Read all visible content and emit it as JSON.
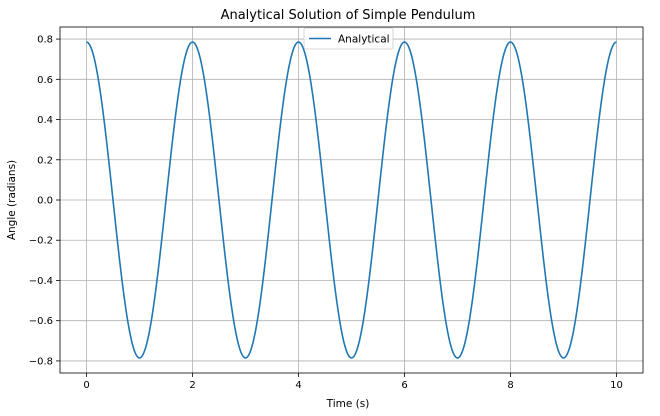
{
  "chart_data": {
    "type": "line",
    "title": "Analytical Solution of Simple Pendulum",
    "xlabel": "Time (s)",
    "ylabel": "Angle (radians)",
    "xlim": [
      -0.5,
      10.5
    ],
    "ylim": [
      -0.86,
      0.86
    ],
    "xticks": [
      0,
      2,
      4,
      6,
      8,
      10
    ],
    "yticks": [
      -0.8,
      -0.6,
      -0.4,
      -0.2,
      0.0,
      0.2,
      0.4,
      0.6,
      0.8
    ],
    "xtick_labels": [
      "0",
      "2",
      "4",
      "6",
      "8",
      "10"
    ],
    "ytick_labels": [
      "−0.8",
      "−0.6",
      "−0.4",
      "−0.2",
      "0.0",
      "0.2",
      "0.4",
      "0.6",
      "0.8"
    ],
    "grid": true,
    "legend": {
      "placement": "top-center",
      "entries": [
        "Analytical"
      ]
    },
    "series": [
      {
        "name": "Analytical",
        "color": "#1f77b4",
        "model": {
          "form": "amplitude*cos(2*pi*t/period)",
          "amplitude": 0.785,
          "period": 2.0,
          "t_start": 0,
          "t_end": 10
        }
      }
    ]
  }
}
